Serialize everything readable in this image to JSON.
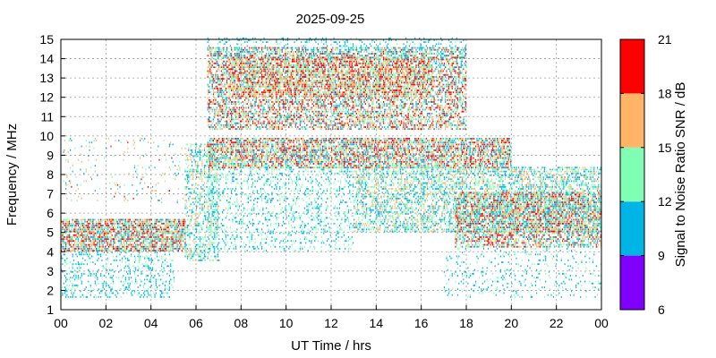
{
  "chart_data": {
    "type": "heatmap",
    "title": "2025-09-25",
    "xlabel": "UT Time / hrs",
    "ylabel": "Frequency / MHz",
    "xlim": [
      0,
      24
    ],
    "ylim": [
      1,
      15
    ],
    "x_tick_labels": [
      "00",
      "02",
      "04",
      "06",
      "08",
      "10",
      "12",
      "14",
      "16",
      "18",
      "20",
      "22",
      "00"
    ],
    "y_tick_labels": [
      "1",
      "2",
      "3",
      "4",
      "5",
      "6",
      "7",
      "8",
      "9",
      "10",
      "11",
      "12",
      "13",
      "14",
      "15"
    ],
    "grid": true,
    "colorbar": {
      "label": "Signal to Noise Ratio SNR / dB",
      "range": [
        6,
        21
      ],
      "tick_labels": [
        "6",
        "9",
        "12",
        "15",
        "18",
        "21"
      ],
      "bins": [
        {
          "from": 6,
          "to": 9,
          "color": "#7f00ff"
        },
        {
          "from": 9,
          "to": 12,
          "color": "#00b4e6"
        },
        {
          "from": 12,
          "to": 15,
          "color": "#80ffb4"
        },
        {
          "from": 15,
          "to": 18,
          "color": "#ffb466"
        },
        {
          "from": 18,
          "to": 21,
          "color": "#ff0000"
        }
      ]
    },
    "regions": [
      {
        "t0": 0.0,
        "t1": 5.5,
        "f0": 4.0,
        "f1": 5.6,
        "snr": [
          9,
          21
        ],
        "density": 0.75
      },
      {
        "t0": 0.0,
        "t1": 5.0,
        "f0": 1.6,
        "f1": 4.0,
        "snr": [
          9,
          14
        ],
        "density": 0.22
      },
      {
        "t0": 0.0,
        "t1": 5.5,
        "f0": 6.5,
        "f1": 9.8,
        "snr": [
          9,
          19
        ],
        "density": 0.05
      },
      {
        "t0": 5.5,
        "t1": 7.0,
        "f0": 3.5,
        "f1": 9.5,
        "snr": [
          9,
          17
        ],
        "density": 0.35
      },
      {
        "t0": 6.5,
        "t1": 18.0,
        "f0": 10.3,
        "f1": 14.5,
        "snr": [
          9,
          21
        ],
        "density": 0.55
      },
      {
        "t0": 7.5,
        "t1": 16.5,
        "f0": 12.0,
        "f1": 14.0,
        "snr": [
          12,
          21
        ],
        "density": 0.45
      },
      {
        "t0": 6.5,
        "t1": 18.0,
        "f0": 14.0,
        "f1": 15.0,
        "snr": [
          9,
          13
        ],
        "density": 0.18
      },
      {
        "t0": 6.5,
        "t1": 20.0,
        "f0": 8.3,
        "f1": 9.8,
        "snr": [
          9,
          21
        ],
        "density": 0.7
      },
      {
        "t0": 6.5,
        "t1": 13.0,
        "f0": 4.0,
        "f1": 8.3,
        "snr": [
          9,
          15
        ],
        "density": 0.2
      },
      {
        "t0": 13.0,
        "t1": 24.0,
        "f0": 5.0,
        "f1": 8.3,
        "snr": [
          9,
          17
        ],
        "density": 0.45
      },
      {
        "t0": 17.5,
        "t1": 24.0,
        "f0": 4.2,
        "f1": 7.0,
        "snr": [
          9,
          21
        ],
        "density": 0.6
      },
      {
        "t0": 17.0,
        "t1": 24.0,
        "f0": 1.6,
        "f1": 4.2,
        "snr": [
          9,
          14
        ],
        "density": 0.1
      }
    ]
  }
}
